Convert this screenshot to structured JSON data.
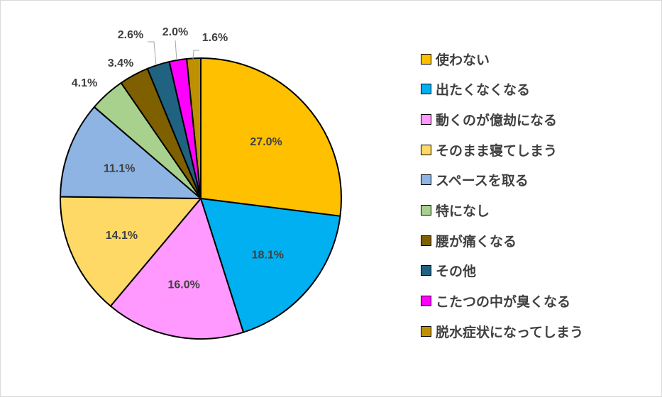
{
  "chart_data": {
    "type": "pie",
    "title": "",
    "legend_position": "right",
    "start_angle": "12 o'clock, clockwise",
    "slices": [
      {
        "label": "使わない",
        "value": 27.0,
        "display": "27.0%",
        "color": "#FFC000",
        "label_placement": "inside"
      },
      {
        "label": "出たくなくなる",
        "value": 18.1,
        "display": "18.1%",
        "color": "#00B0F0",
        "label_placement": "inside"
      },
      {
        "label": "動くのが億劫になる",
        "value": 16.0,
        "display": "16.0%",
        "color": "#FF99FF",
        "label_placement": "inside"
      },
      {
        "label": "そのまま寝てしまう",
        "value": 14.1,
        "display": "14.1%",
        "color": "#FFD966",
        "label_placement": "inside"
      },
      {
        "label": "スペースを取る",
        "value": 11.1,
        "display": "11.1%",
        "color": "#8EB4E3",
        "label_placement": "inside"
      },
      {
        "label": "特になし",
        "value": 4.1,
        "display": "4.1%",
        "color": "#A9D18E",
        "label_placement": "outside"
      },
      {
        "label": "腰が痛くなる",
        "value": 3.4,
        "display": "3.4%",
        "color": "#7F6000",
        "label_placement": "outside"
      },
      {
        "label": "その他",
        "value": 2.6,
        "display": "2.6%",
        "color": "#1F6381",
        "label_placement": "outside"
      },
      {
        "label": "こたつの中が臭くなる",
        "value": 2.0,
        "display": "2.0%",
        "color": "#FF00FF",
        "label_placement": "outside"
      },
      {
        "label": "脱水症状になってしまう",
        "value": 1.6,
        "display": "1.6%",
        "color": "#BF9000",
        "label_placement": "outside"
      }
    ]
  }
}
